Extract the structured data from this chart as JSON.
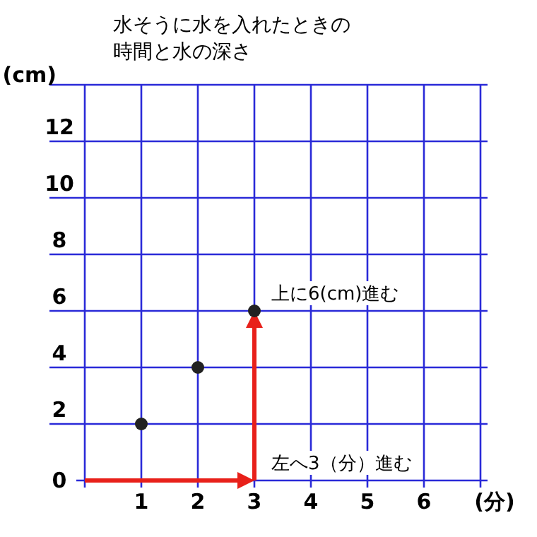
{
  "chart_data": {
    "type": "scatter",
    "title": "水そうに水を入れたときの時間と水の深さ",
    "xlabel": "(分)",
    "ylabel": "(cm)",
    "x": [
      1,
      2,
      3
    ],
    "series": [
      {
        "color": "#222222",
        "values": [
          2,
          4,
          6
        ]
      }
    ],
    "xlim": [
      0,
      7
    ],
    "xticks": [
      {
        "value": 0,
        "label": null
      },
      1,
      2,
      3,
      4,
      5,
      6,
      {
        "value": 7,
        "label": null
      }
    ],
    "ylim": [
      0,
      14
    ],
    "yticks": [
      0,
      2,
      4,
      6,
      8,
      10,
      12,
      {
        "value": 14,
        "label": null
      }
    ],
    "grid": true,
    "marker": "circle",
    "annotations": [
      {
        "text": "上に6(cm)進む",
        "x": 3,
        "y": 6
      },
      "左へ3（分）進む"
    ]
  }
}
